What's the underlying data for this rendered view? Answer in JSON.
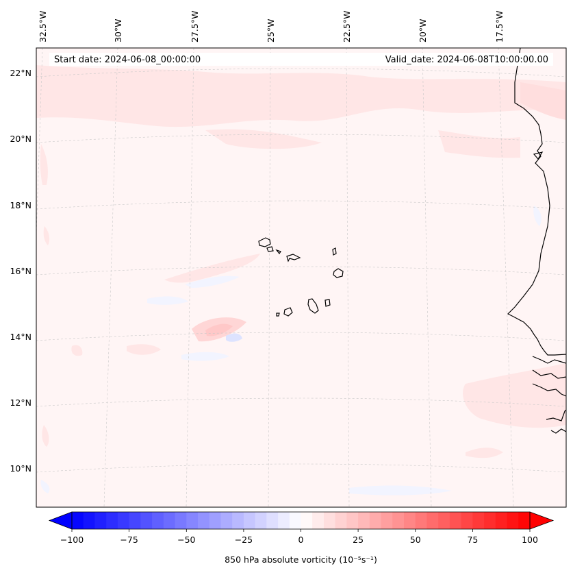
{
  "header": {
    "start_date": "Start date: 2024-06-08_00:00:00",
    "valid_date": "Valid_date: 2024-06-08T10:00:00.00"
  },
  "axes": {
    "lon_labels": [
      "32.5°W",
      "30°W",
      "27.5°W",
      "25°W",
      "22.5°W",
      "20°W",
      "17.5°W"
    ],
    "lat_labels": [
      "22°N",
      "20°N",
      "18°N",
      "16°N",
      "14°N",
      "12°N",
      "10°N"
    ],
    "gridlines": true
  },
  "colorbar": {
    "ticks": [
      "−100",
      "−75",
      "−50",
      "−25",
      "0",
      "25",
      "50",
      "75",
      "100"
    ],
    "title": "850 hPa absolute vorticity (10⁻⁵s⁻¹)",
    "vmin": -100,
    "vmax": 100,
    "levels": 40,
    "low_color": "#0000ff",
    "mid_color": "#ffffff",
    "high_color": "#ff0000",
    "extend": "both"
  },
  "map": {
    "background_color": "#fff5f5",
    "coastline_color": "#000000",
    "features": [
      "cape-verde-islands",
      "west-africa-coastline"
    ]
  }
}
